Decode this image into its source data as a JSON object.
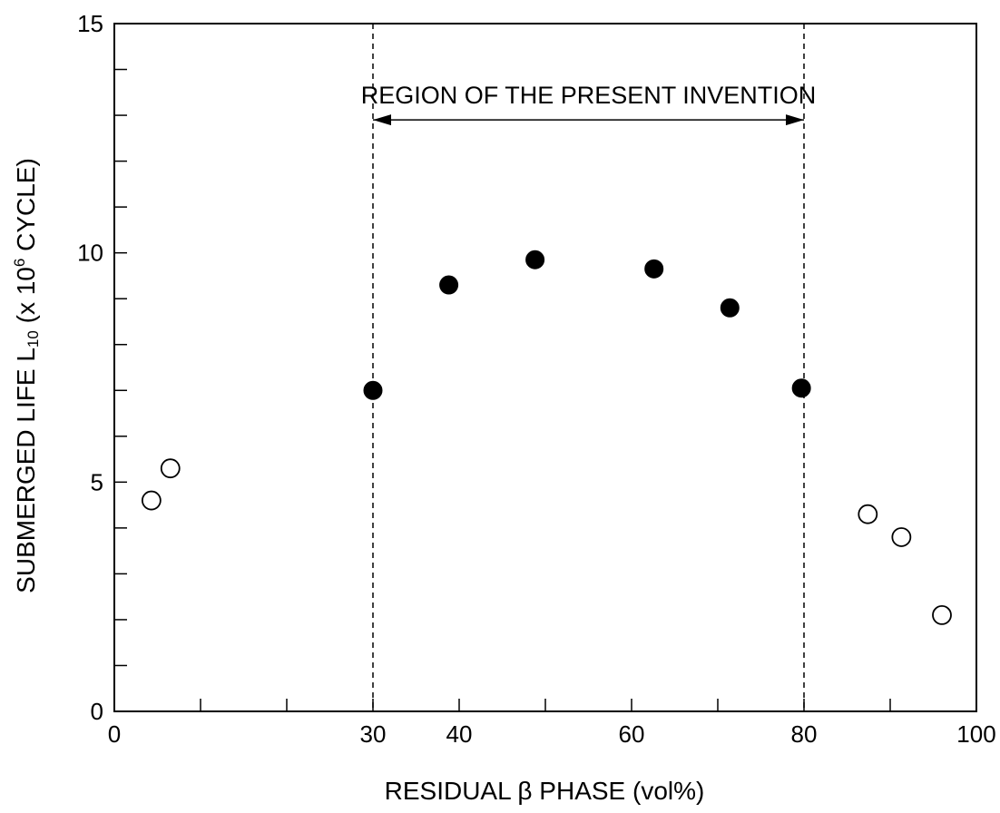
{
  "chart_data": {
    "type": "scatter",
    "title": "",
    "xlabel": "RESIDUAL β PHASE (vol%)",
    "ylabel": {
      "prefix": "SUBMERGED LIFE L",
      "subscript": "10",
      "mid": " (x 10",
      "superscript": "6",
      "suffix": " CYCLE)"
    },
    "xlim": [
      0,
      100
    ],
    "ylim": [
      0,
      15
    ],
    "x_tick_labels": [
      "0",
      "30",
      "40",
      "60",
      "80",
      "100"
    ],
    "x_tick_values": [
      0,
      30,
      40,
      60,
      80,
      100
    ],
    "x_minor_ticks": [
      10,
      20,
      50,
      70,
      90
    ],
    "y_tick_labels": [
      "0",
      "5",
      "10",
      "15"
    ],
    "y_tick_values": [
      0,
      5,
      10,
      15
    ],
    "y_minor_ticks": [
      1,
      2,
      3,
      4,
      6,
      7,
      8,
      9,
      11,
      12,
      13,
      14
    ],
    "grid": false,
    "legend": "none",
    "series": [
      {
        "marker": "filled-circle",
        "x": [
          30,
          38.8,
          48.8,
          62.6,
          71.4,
          79.7
        ],
        "y": [
          7.0,
          9.3,
          9.85,
          9.65,
          8.8,
          7.05
        ]
      },
      {
        "marker": "open-circle",
        "x": [
          4.3,
          6.5,
          87.4,
          91.3,
          96.0
        ],
        "y": [
          4.6,
          5.3,
          4.3,
          3.8,
          2.1
        ]
      }
    ],
    "annotations": [
      {
        "text": "REGION OF THE PRESENT INVENTION",
        "x_range": [
          30,
          80
        ],
        "y": 12.9,
        "style": "double-arrow"
      }
    ],
    "reference_lines": [
      {
        "x": 30,
        "style": "dashed"
      },
      {
        "x": 80,
        "style": "dashed"
      }
    ]
  }
}
